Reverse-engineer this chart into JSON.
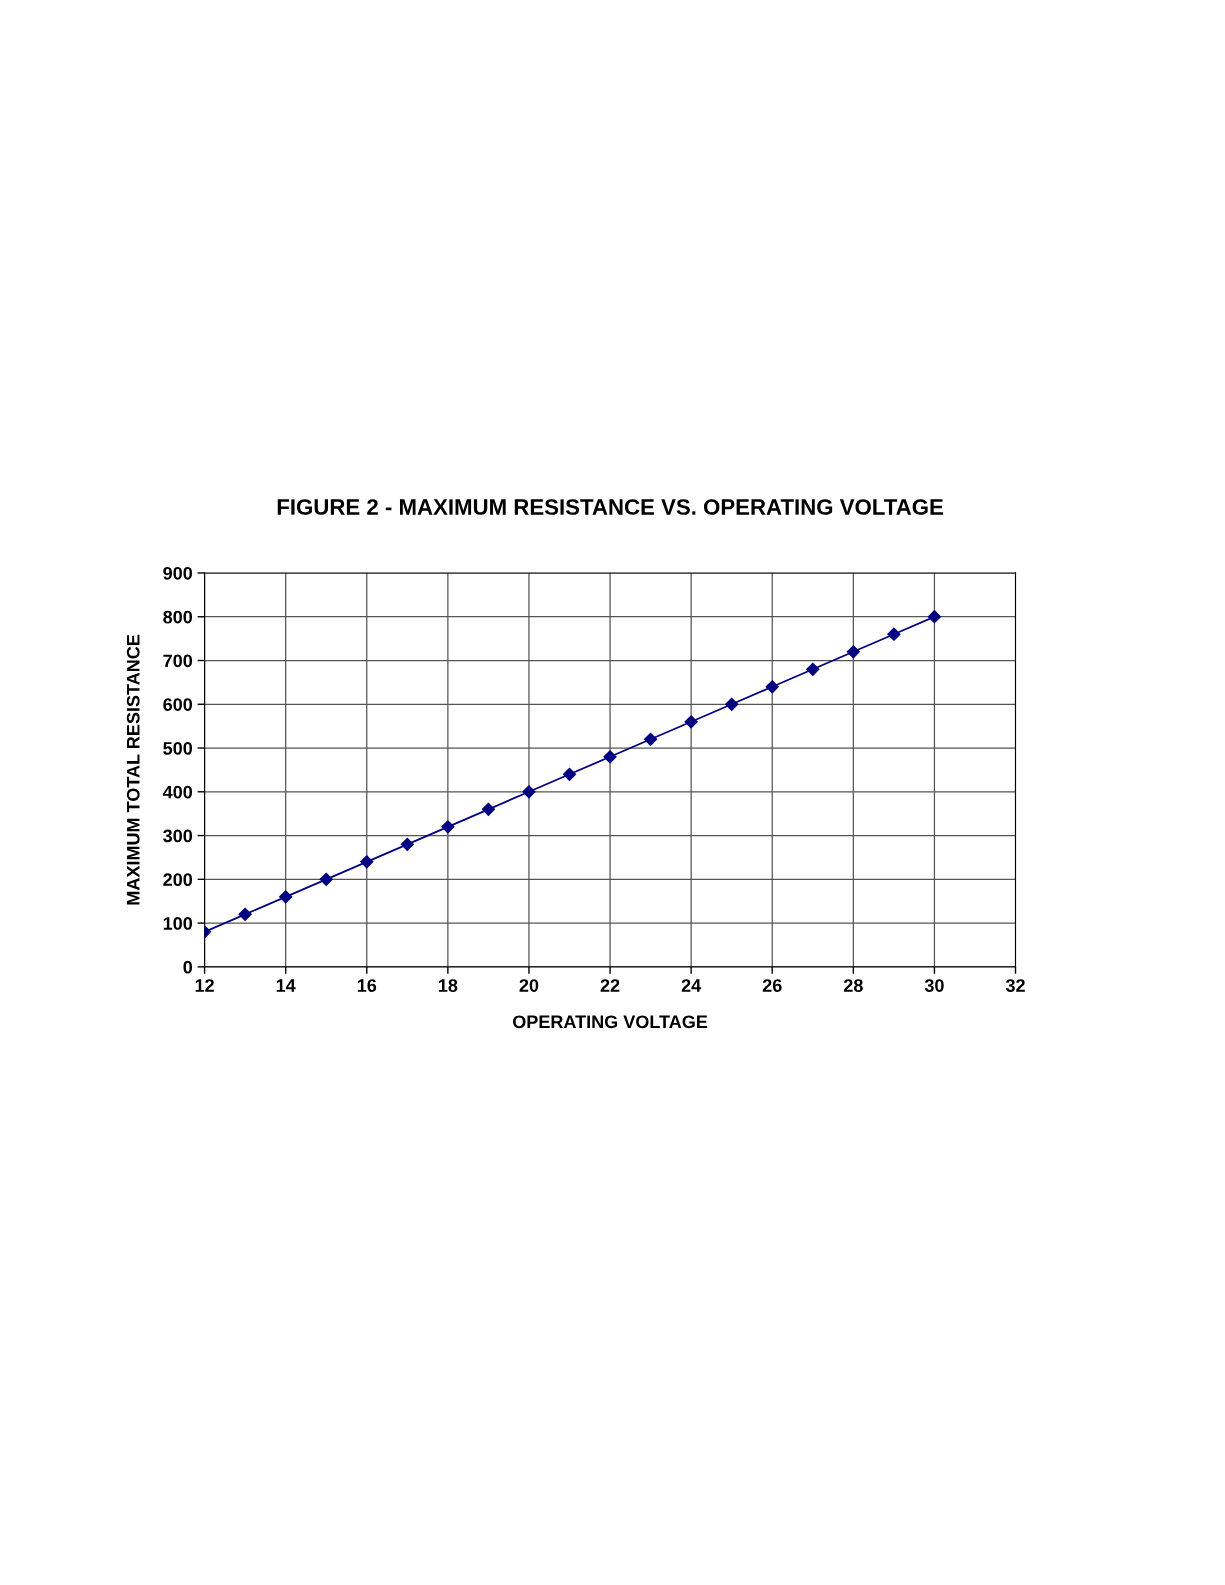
{
  "chart_data": {
    "type": "line",
    "title": "FIGURE 2 - MAXIMUM RESISTANCE VS. OPERATING VOLTAGE",
    "xlabel": "OPERATING VOLTAGE",
    "ylabel": "MAXIMUM TOTAL RESISTANCE",
    "x": [
      12,
      13,
      14,
      15,
      16,
      17,
      18,
      19,
      20,
      21,
      22,
      23,
      24,
      25,
      26,
      27,
      28,
      29,
      30
    ],
    "series": [
      {
        "color": "#000080",
        "values": [
          80,
          120,
          160,
          200,
          240,
          280,
          320,
          360,
          400,
          440,
          480,
          520,
          560,
          600,
          640,
          680,
          720,
          760,
          800
        ]
      }
    ],
    "xlim": [
      12,
      32
    ],
    "xticks": [
      12,
      14,
      16,
      18,
      20,
      22,
      24,
      26,
      28,
      30,
      32
    ],
    "ylim": [
      0,
      900
    ],
    "yticks": [
      0,
      100,
      200,
      300,
      400,
      500,
      600,
      700,
      800,
      900
    ],
    "grid": true,
    "marker": "diamond",
    "line_style": "solid",
    "legend": false
  }
}
